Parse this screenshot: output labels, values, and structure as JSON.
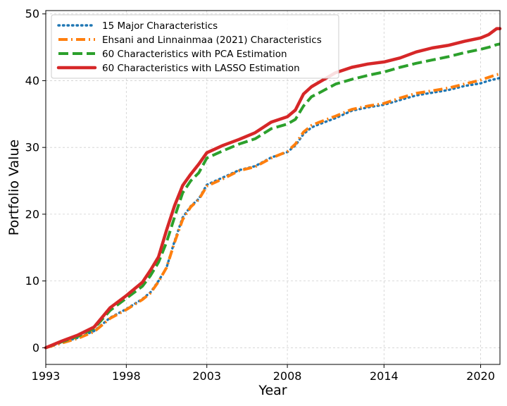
{
  "chart_data": {
    "type": "line",
    "title": "",
    "xlabel": "Year",
    "ylabel": "Portfolio Value",
    "xlim": [
      1993,
      2021.2
    ],
    "ylim": [
      -2.5,
      50.5
    ],
    "xticks": [
      1993,
      1998,
      2003,
      2008,
      2014,
      2020
    ],
    "yticks": [
      0,
      10,
      20,
      30,
      40,
      50
    ],
    "grid": true,
    "legend_position": "top-left",
    "series": [
      {
        "name": "15 Major Characteristics",
        "color": "#1f77b4",
        "style": "dotted",
        "x": [
          1993,
          1994,
          1995,
          1996,
          1997,
          1998,
          1999,
          1999.5,
          2000,
          2000.5,
          2001,
          2001.5,
          2002,
          2002.5,
          2003,
          2004,
          2005,
          2006,
          2007,
          2008,
          2008.5,
          2009,
          2009.5,
          2010,
          2011,
          2012,
          2013,
          2014,
          2015,
          2016,
          2017,
          2018,
          2019,
          2020,
          2020.5,
          2021,
          2021.2
        ],
        "y": [
          0,
          0.8,
          1.5,
          2.5,
          4.5,
          5.8,
          7.3,
          8.3,
          10,
          12,
          16,
          19.5,
          21.2,
          22.3,
          24.4,
          25.5,
          26.6,
          27.2,
          28.5,
          29.3,
          30.3,
          32,
          33,
          33.5,
          34.4,
          35.5,
          36,
          36.4,
          37.1,
          37.8,
          38.2,
          38.6,
          39.2,
          39.6,
          40,
          40.3,
          40.4
        ]
      },
      {
        "name": "Ehsani and Linnainmaa (2021) Characteristics",
        "color": "#ff7f0e",
        "style": "dashdot",
        "x": [
          1993,
          1994,
          1995,
          1996,
          1997,
          1998,
          1999,
          1999.5,
          2000,
          2000.5,
          2001,
          2001.5,
          2002,
          2002.5,
          2003,
          2004,
          2005,
          2006,
          2007,
          2008,
          2008.5,
          2009,
          2009.5,
          2010,
          2011,
          2012,
          2013,
          2014,
          2015,
          2016,
          2017,
          2018,
          2019,
          2020,
          2020.5,
          2021,
          2021.2
        ],
        "y": [
          0,
          0.7,
          1.4,
          2.4,
          4.4,
          5.7,
          7.2,
          8.2,
          9.9,
          12,
          15.8,
          19.2,
          21.1,
          22.2,
          24.2,
          25.3,
          26.5,
          27.1,
          28.4,
          29.4,
          30.5,
          32.3,
          33.3,
          33.8,
          34.7,
          35.7,
          36.2,
          36.6,
          37.4,
          38.1,
          38.5,
          38.9,
          39.5,
          40.1,
          40.5,
          40.9,
          41
        ]
      },
      {
        "name": "60 Characteristics with PCA Estimation",
        "color": "#2ca02c",
        "style": "dashed",
        "x": [
          1993,
          1994,
          1995,
          1996,
          1997,
          1998,
          1999,
          1999.5,
          2000,
          2000.5,
          2001,
          2001.5,
          2002,
          2002.5,
          2003,
          2004,
          2005,
          2006,
          2007,
          2008,
          2008.5,
          2009,
          2009.5,
          2010,
          2011,
          2012,
          2013,
          2014,
          2015,
          2016,
          2017,
          2018,
          2019,
          2020,
          2020.5,
          2021,
          2021.2
        ],
        "y": [
          0,
          0.9,
          1.7,
          2.9,
          5.6,
          7.4,
          9.2,
          10.8,
          12.8,
          15.8,
          19.6,
          23.2,
          25,
          26.2,
          28.4,
          29.5,
          30.5,
          31.3,
          32.8,
          33.5,
          34.2,
          36.2,
          37.6,
          38.2,
          39.5,
          40.2,
          40.8,
          41.3,
          42,
          42.6,
          43.1,
          43.6,
          44.2,
          44.7,
          45,
          45.4,
          45.5
        ]
      },
      {
        "name": "60 Characteristics with LASSO Estimation",
        "color": "#d62728",
        "style": "solid",
        "x": [
          1993,
          1994,
          1995,
          1996,
          1997,
          1998,
          1999,
          1999.5,
          2000,
          2000.5,
          2001,
          2001.5,
          2002,
          2002.5,
          2003,
          2004,
          2005,
          2006,
          2007,
          2008,
          2008.5,
          2009,
          2009.5,
          2010,
          2011,
          2012,
          2013,
          2014,
          2015,
          2016,
          2017,
          2018,
          2019,
          2020,
          2020.5,
          2021,
          2021.2
        ],
        "y": [
          0,
          1,
          1.9,
          3.1,
          6,
          7.8,
          9.8,
          11.6,
          13.6,
          17.6,
          21.3,
          24.3,
          26,
          27.5,
          29.2,
          30.3,
          31.2,
          32.2,
          33.8,
          34.6,
          35.6,
          38,
          39.1,
          39.8,
          41.2,
          42,
          42.5,
          42.8,
          43.4,
          44.3,
          44.9,
          45.3,
          45.9,
          46.4,
          46.9,
          47.8,
          47.8
        ]
      }
    ]
  }
}
